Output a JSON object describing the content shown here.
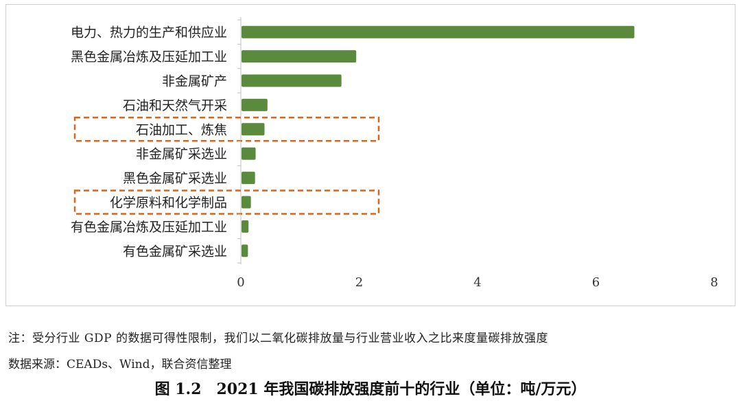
{
  "chart_data": {
    "type": "bar",
    "orientation": "horizontal",
    "categories": [
      "电力、热力的生产和供应业",
      "黑色金属冶炼及压延加工业",
      "非金属矿产",
      "石油和天然气开采",
      "石油加工、炼焦",
      "非金属矿采选业",
      "黑色金属矿采选业",
      "化学原料和化学制品",
      "有色金属冶炼及压延加工业",
      "有色金属矿采选业"
    ],
    "values": [
      6.65,
      1.95,
      1.7,
      0.45,
      0.4,
      0.25,
      0.24,
      0.17,
      0.13,
      0.12
    ],
    "highlighted": [
      "石油加工、炼焦",
      "化学原料和化学制品"
    ],
    "xlim": [
      0,
      8
    ],
    "xticks": [
      "0",
      "2",
      "4",
      "6",
      "8"
    ],
    "grid": false,
    "colors": {
      "bar": "#5a8a3c",
      "highlight_box": "#d2691e",
      "axis": "#bfbfbf"
    }
  },
  "note": "注：受分行业 GDP 的数据可得性限制，我们以二氧化碳排放量与行业营业收入之比来度量碳排放强度",
  "source": "数据来源：CEADs、Wind，联合资信整理",
  "caption": "图 1.2　2021 年我国碳排放强度前十的行业（单位：吨/万元）"
}
